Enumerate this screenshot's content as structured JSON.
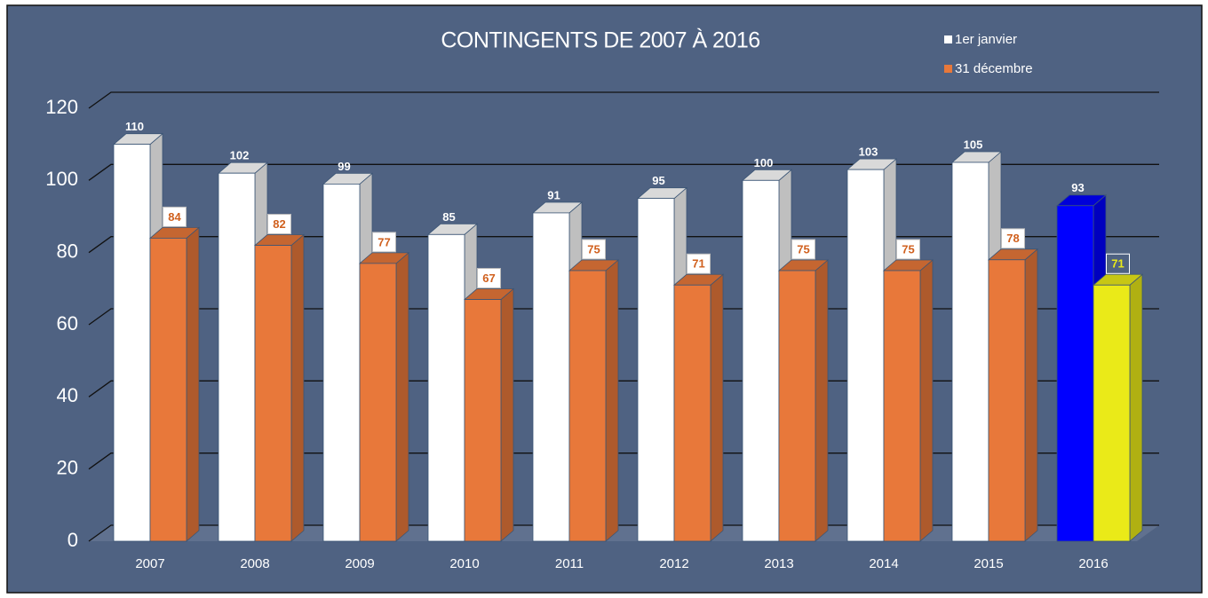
{
  "chart_data": {
    "type": "bar3d",
    "title": "CONTINGENTS DE 2007 À  2016",
    "categories": [
      "2007",
      "2008",
      "2009",
      "2010",
      "2011",
      "2012",
      "2013",
      "2014",
      "2015",
      "2016"
    ],
    "series": [
      {
        "name": "1er janvier",
        "color": "#ffffff",
        "colors": [
          "#ffffff",
          "#ffffff",
          "#ffffff",
          "#ffffff",
          "#ffffff",
          "#ffffff",
          "#ffffff",
          "#ffffff",
          "#ffffff",
          "#0000ff"
        ],
        "values": [
          110,
          102,
          99,
          85,
          91,
          95,
          100,
          103,
          105,
          93
        ]
      },
      {
        "name": "31 décembre",
        "color": "#e8783a",
        "colors": [
          "#e8783a",
          "#e8783a",
          "#e8783a",
          "#e8783a",
          "#e8783a",
          "#e8783a",
          "#e8783a",
          "#e8783a",
          "#e8783a",
          "#eaea18"
        ],
        "values": [
          84,
          82,
          77,
          67,
          75,
          71,
          75,
          75,
          78,
          71
        ]
      }
    ],
    "ylim": [
      0,
      120
    ],
    "yticks": [
      0,
      20,
      40,
      60,
      80,
      100,
      120
    ],
    "grid": true,
    "legend": "top-right"
  }
}
